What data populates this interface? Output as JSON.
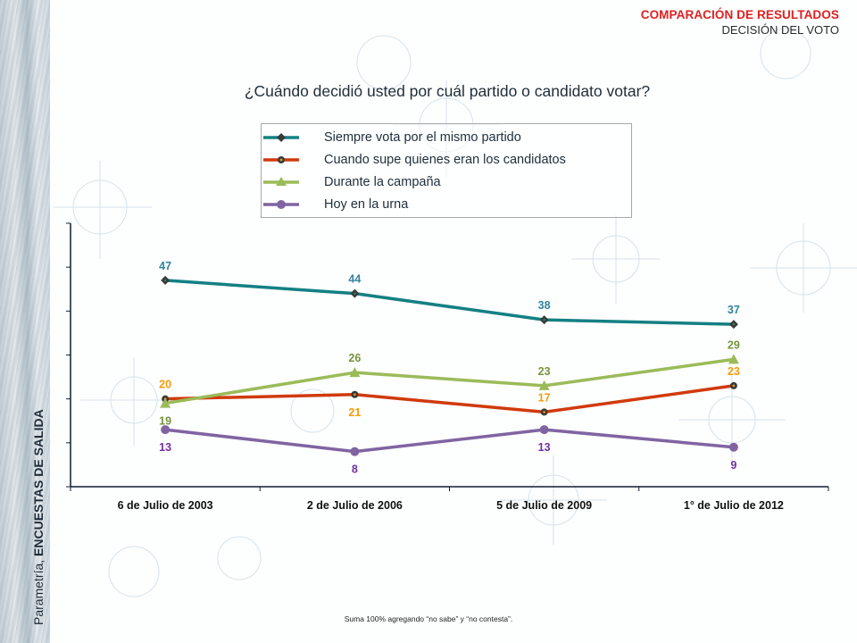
{
  "header": {
    "title": "COMPARACIÓN DE RESULTADOS",
    "subtitle": "DECISIÓN DEL VOTO"
  },
  "side_label": {
    "normal": "Parametría, ",
    "bold": "ENCUESTAS DE SALIDA"
  },
  "footnote": "Suma 100% agregando “no sabe” y “no contesta”.",
  "colors": {
    "header_title": "#e02020",
    "teal": "#138083",
    "red": "#d03a0c",
    "green": "#9bbb59",
    "purple": "#8064a2",
    "label_teal": "#31849b",
    "label_orange": "#f79b09",
    "label_green": "#77933c",
    "label_purple": "#7030a0"
  },
  "chart_data": {
    "type": "line",
    "title": "¿Cuándo decidió usted por cuál partido o candidato votar?",
    "xlabel": "",
    "ylabel": "",
    "ylim": [
      0,
      60
    ],
    "yticks": [
      0,
      10,
      20,
      30,
      40,
      50,
      60
    ],
    "grid": false,
    "legend_position": "top-center",
    "categories": [
      "6 de Julio de 2003",
      "2 de Julio de 2006",
      "5 de Julio de 2009",
      "1° de Julio de 2012"
    ],
    "series": [
      {
        "name": "Siempre vota por el mismo partido",
        "values": [
          47,
          44,
          38,
          37
        ],
        "marker": "diamond",
        "color": "#138083",
        "label_color": "#31849b",
        "label_pos": "above"
      },
      {
        "name": "Cuando supe quienes eran los candidatos",
        "values": [
          20,
          21,
          17,
          23
        ],
        "marker": "circle-dark",
        "color": "#d03a0c",
        "label_color": "#f79b09",
        "label_pos": [
          "above",
          "below",
          "above",
          "above"
        ]
      },
      {
        "name": "Durante la campaña",
        "values": [
          19,
          26,
          23,
          29
        ],
        "marker": "triangle",
        "color": "#9bbb59",
        "label_color": "#77933c",
        "label_pos": [
          "below",
          "above",
          "above",
          "above"
        ]
      },
      {
        "name": "Hoy en la urna",
        "values": [
          13,
          8,
          13,
          9
        ],
        "marker": "circle",
        "color": "#8064a2",
        "label_color": "#7030a0",
        "label_pos": "below"
      }
    ]
  }
}
